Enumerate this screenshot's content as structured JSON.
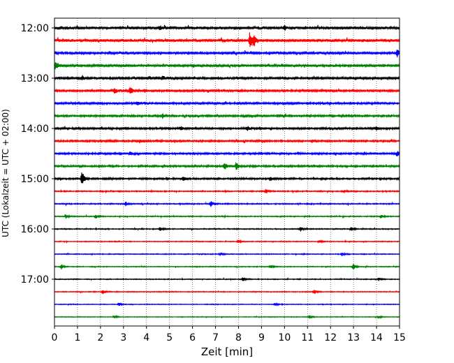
{
  "chart_data": {
    "type": "line",
    "title": "",
    "xlabel": "Zeit  [min]",
    "ylabel": "UTC (Lokalzeit = UTC + 02:00)",
    "xlim": [
      0,
      15
    ],
    "x_ticks": [
      "0",
      "1",
      "2",
      "3",
      "4",
      "5",
      "6",
      "7",
      "8",
      "9",
      "10",
      "11",
      "12",
      "13",
      "14",
      "15"
    ],
    "y_tick_labels": [
      "12:00",
      "13:00",
      "14:00",
      "15:00",
      "16:00",
      "17:00"
    ],
    "grid": "vertical dotted lines at each minute",
    "trace_colors": [
      "#000000",
      "#ff0000",
      "#0000ff",
      "#008000"
    ],
    "traces": [
      {
        "start": "12:00",
        "color": "#000000",
        "amplitude": 0.18,
        "events": [
          {
            "t": 4.6,
            "a": 0.35
          },
          {
            "t": 10.0,
            "a": 0.3
          }
        ]
      },
      {
        "start": "12:15",
        "color": "#ff0000",
        "amplitude": 0.2,
        "events": [
          {
            "t": 8.5,
            "a": 1.4
          },
          {
            "t": 8.7,
            "a": 0.6
          }
        ]
      },
      {
        "start": "12:30",
        "color": "#0000ff",
        "amplitude": 0.17,
        "events": [
          {
            "t": 14.9,
            "a": 0.5
          }
        ]
      },
      {
        "start": "12:45",
        "color": "#008000",
        "amplitude": 0.18,
        "events": [
          {
            "t": 0.05,
            "a": 0.7
          }
        ]
      },
      {
        "start": "13:00",
        "color": "#000000",
        "amplitude": 0.16,
        "events": [
          {
            "t": 4.7,
            "a": 0.3
          },
          {
            "t": 1.2,
            "a": 0.3
          }
        ]
      },
      {
        "start": "13:15",
        "color": "#ff0000",
        "amplitude": 0.15,
        "events": [
          {
            "t": 3.3,
            "a": 0.7
          },
          {
            "t": 2.6,
            "a": 0.45
          }
        ]
      },
      {
        "start": "13:30",
        "color": "#0000ff",
        "amplitude": 0.14,
        "events": [
          {
            "t": 3.6,
            "a": 0.3
          },
          {
            "t": 8.0,
            "a": 0.25
          }
        ]
      },
      {
        "start": "13:45",
        "color": "#008000",
        "amplitude": 0.14,
        "events": [
          {
            "t": 4.7,
            "a": 0.35
          },
          {
            "t": 9.8,
            "a": 0.25
          }
        ]
      },
      {
        "start": "14:00",
        "color": "#000000",
        "amplitude": 0.14,
        "events": [
          {
            "t": 8.4,
            "a": 0.35
          },
          {
            "t": 5.5,
            "a": 0.3
          },
          {
            "t": 14.0,
            "a": 0.3
          }
        ]
      },
      {
        "start": "14:15",
        "color": "#ff0000",
        "amplitude": 0.13,
        "events": [
          {
            "t": 3.7,
            "a": 0.3
          },
          {
            "t": 11.2,
            "a": 0.25
          }
        ]
      },
      {
        "start": "14:30",
        "color": "#0000ff",
        "amplitude": 0.13,
        "events": [
          {
            "t": 3.3,
            "a": 0.35
          },
          {
            "t": 14.9,
            "a": 0.4
          }
        ]
      },
      {
        "start": "14:45",
        "color": "#008000",
        "amplitude": 0.13,
        "events": [
          {
            "t": 7.9,
            "a": 0.7
          },
          {
            "t": 7.4,
            "a": 0.55
          }
        ]
      },
      {
        "start": "15:00",
        "color": "#000000",
        "amplitude": 0.12,
        "events": [
          {
            "t": 1.2,
            "a": 1.2
          },
          {
            "t": 5.6,
            "a": 0.45
          },
          {
            "t": 9.4,
            "a": 0.3
          }
        ]
      },
      {
        "start": "15:15",
        "color": "#ff0000",
        "amplitude": 0.08,
        "events": [
          {
            "t": 9.2,
            "a": 0.35
          },
          {
            "t": 12.6,
            "a": 0.25
          }
        ]
      },
      {
        "start": "15:30",
        "color": "#0000ff",
        "amplitude": 0.08,
        "events": [
          {
            "t": 6.8,
            "a": 0.55
          },
          {
            "t": 3.1,
            "a": 0.3
          }
        ]
      },
      {
        "start": "15:45",
        "color": "#008000",
        "amplitude": 0.07,
        "events": [
          {
            "t": 1.8,
            "a": 0.35
          },
          {
            "t": 0.5,
            "a": 0.3
          },
          {
            "t": 14.2,
            "a": 0.3
          }
        ]
      },
      {
        "start": "16:00",
        "color": "#000000",
        "amplitude": 0.07,
        "events": [
          {
            "t": 4.6,
            "a": 0.35
          },
          {
            "t": 10.7,
            "a": 0.35
          },
          {
            "t": 12.9,
            "a": 0.3
          }
        ]
      },
      {
        "start": "16:15",
        "color": "#ff0000",
        "amplitude": 0.06,
        "events": [
          {
            "t": 8.0,
            "a": 0.25
          },
          {
            "t": 11.5,
            "a": 0.2
          }
        ]
      },
      {
        "start": "16:30",
        "color": "#0000ff",
        "amplitude": 0.06,
        "events": [
          {
            "t": 12.5,
            "a": 0.35
          },
          {
            "t": 7.2,
            "a": 0.25
          }
        ]
      },
      {
        "start": "16:45",
        "color": "#008000",
        "amplitude": 0.06,
        "events": [
          {
            "t": 0.3,
            "a": 0.45
          },
          {
            "t": 13.0,
            "a": 0.45
          },
          {
            "t": 9.4,
            "a": 0.25
          }
        ]
      },
      {
        "start": "17:00",
        "color": "#000000",
        "amplitude": 0.06,
        "events": [
          {
            "t": 8.2,
            "a": 0.3
          },
          {
            "t": 14.1,
            "a": 0.25
          }
        ]
      },
      {
        "start": "17:15",
        "color": "#ff0000",
        "amplitude": 0.06,
        "events": [
          {
            "t": 2.1,
            "a": 0.4
          },
          {
            "t": 11.3,
            "a": 0.4
          }
        ]
      },
      {
        "start": "17:30",
        "color": "#0000ff",
        "amplitude": 0.05,
        "events": [
          {
            "t": 2.8,
            "a": 0.25
          },
          {
            "t": 9.6,
            "a": 0.2
          }
        ]
      },
      {
        "start": "17:45",
        "color": "#008000",
        "amplitude": 0.05,
        "events": [
          {
            "t": 2.6,
            "a": 0.25
          },
          {
            "t": 11.1,
            "a": 0.25
          },
          {
            "t": 14.1,
            "a": 0.2
          }
        ]
      }
    ]
  }
}
